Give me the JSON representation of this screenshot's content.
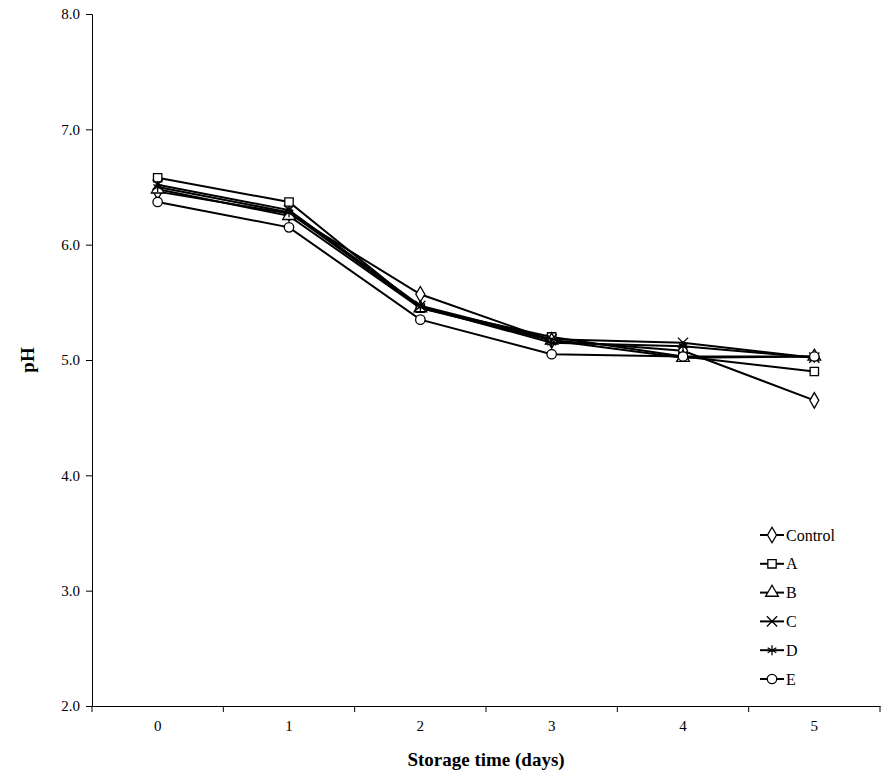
{
  "chart_data": {
    "type": "line",
    "x_label": "Storage time (days)",
    "y_label": "pH",
    "categories": [
      "0",
      "1",
      "2",
      "3",
      "4",
      "5"
    ],
    "ylim": [
      2.0,
      8.0
    ],
    "yticks": [
      {
        "value": 2,
        "label": "2.0"
      },
      {
        "value": 3,
        "label": "3.0"
      },
      {
        "value": 4,
        "label": "4.0"
      },
      {
        "value": 5,
        "label": "5.0"
      },
      {
        "value": 6,
        "label": "6.0"
      },
      {
        "value": 7,
        "label": "7.0"
      },
      {
        "value": 8,
        "label": "8.0"
      }
    ],
    "grid": false,
    "legend": "bottom-right",
    "series": [
      {
        "name": "Control",
        "color": "#000000",
        "marker": "diamond",
        "values": [
          6.46,
          6.27,
          5.57,
          5.17,
          5.08,
          4.65
        ]
      },
      {
        "name": "A",
        "color": "#000000",
        "marker": "square",
        "values": [
          6.58,
          6.37,
          5.45,
          5.2,
          5.03,
          4.9
        ]
      },
      {
        "name": "B",
        "color": "#000000",
        "marker": "triangle",
        "values": [
          6.48,
          6.25,
          5.45,
          5.17,
          5.02,
          5.03
        ]
      },
      {
        "name": "C",
        "color": "#000000",
        "marker": "x",
        "values": [
          6.52,
          6.3,
          5.47,
          5.18,
          5.15,
          5.02
        ]
      },
      {
        "name": "D",
        "color": "#000000",
        "marker": "star",
        "values": [
          6.5,
          6.28,
          5.46,
          5.15,
          5.12,
          5.02
        ]
      },
      {
        "name": "E",
        "color": "#000000",
        "marker": "circle",
        "values": [
          6.37,
          6.15,
          5.35,
          5.05,
          5.03,
          5.03
        ]
      }
    ]
  }
}
